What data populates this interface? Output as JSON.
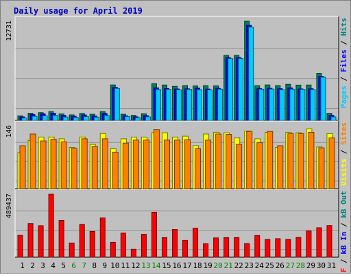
{
  "chart_data": [
    {
      "type": "bar",
      "title": "Daily usage for April 2019",
      "ylabel_parts": [
        {
          "text": "Pages",
          "color": "#00ccff"
        },
        {
          "text": " / ",
          "color": "#000000"
        },
        {
          "text": "Files",
          "color": "#0000ff"
        },
        {
          "text": " / ",
          "color": "#000000"
        },
        {
          "text": "Hits",
          "color": "#008080"
        }
      ],
      "y_max_label": "12731",
      "ylim": [
        0,
        12731
      ],
      "grid": true,
      "categories": [
        "1",
        "2",
        "3",
        "4",
        "5",
        "6",
        "7",
        "8",
        "9",
        "10",
        "11",
        "12",
        "13",
        "14",
        "15",
        "16",
        "17",
        "18",
        "19",
        "20",
        "21",
        "22",
        "23",
        "24",
        "25",
        "26",
        "27",
        "28",
        "29",
        "30",
        "31"
      ],
      "series": [
        {
          "name": "Hits",
          "color": "#00805c",
          "values": [
            580,
            910,
            990,
            1130,
            830,
            700,
            890,
            780,
            1130,
            4550,
            790,
            640,
            850,
            4710,
            4540,
            4370,
            4460,
            4420,
            4450,
            4430,
            8340,
            8340,
            12731,
            4450,
            4550,
            4460,
            4630,
            4530,
            4540,
            6010,
            900
          ]
        },
        {
          "name": "Files",
          "color": "#0000ff",
          "values": [
            440,
            740,
            830,
            900,
            630,
            520,
            690,
            570,
            880,
            4230,
            590,
            450,
            610,
            4170,
            4080,
            4030,
            4050,
            4140,
            4020,
            4110,
            8040,
            8040,
            12190,
            4070,
            4120,
            4070,
            4170,
            4040,
            4060,
            5650,
            640
          ]
        },
        {
          "name": "Pages",
          "color": "#00ccff",
          "values": [
            320,
            520,
            590,
            640,
            420,
            380,
            490,
            410,
            630,
            4100,
            480,
            350,
            450,
            3970,
            3980,
            3930,
            3970,
            3950,
            3920,
            4010,
            7920,
            7930,
            11970,
            4000,
            4020,
            3950,
            4000,
            3980,
            3960,
            5540,
            440
          ]
        }
      ]
    },
    {
      "type": "bar",
      "ylabel_parts": [
        {
          "text": "Visits",
          "color": "#ffff00"
        },
        {
          "text": " / ",
          "color": "#000000"
        },
        {
          "text": "Sites",
          "color": "#ff8000"
        }
      ],
      "y_max_label": "146",
      "ylim": [
        0,
        146
      ],
      "grid": true,
      "categories": [
        "1",
        "2",
        "3",
        "4",
        "5",
        "6",
        "7",
        "8",
        "9",
        "10",
        "11",
        "12",
        "13",
        "14",
        "15",
        "16",
        "17",
        "18",
        "19",
        "20",
        "21",
        "22",
        "23",
        "24",
        "25",
        "26",
        "27",
        "28",
        "29",
        "30",
        "31"
      ],
      "series": [
        {
          "name": "Visits",
          "color": "#ffff00",
          "values": [
            84,
            112,
            120,
            120,
            116,
            96,
            120,
            103,
            128,
            93,
            116,
            120,
            120,
            130,
            130,
            120,
            122,
            100,
            127,
            131,
            130,
            118,
            134,
            116,
            131,
            96,
            131,
            130,
            139,
            97,
            128
          ]
        },
        {
          "name": "Sites",
          "color": "#ff8000",
          "values": [
            100,
            127,
            111,
            115,
            109,
            94,
            116,
            98,
            116,
            85,
            106,
            113,
            113,
            137,
            113,
            113,
            114,
            93,
            113,
            127,
            126,
            103,
            133,
            107,
            133,
            100,
            128,
            128,
            131,
            95,
            118
          ]
        }
      ]
    },
    {
      "type": "bar",
      "ylabel_parts": [
        {
          "text": "kB F",
          "color": "#ff0000"
        },
        {
          "text": " / ",
          "color": "#000000"
        },
        {
          "text": "kB In",
          "color": "#0000ff"
        },
        {
          "text": " / ",
          "color": "#000000"
        },
        {
          "text": "kB Out",
          "color": "#008080"
        }
      ],
      "y_max_label": "489437",
      "ylim": [
        0,
        489437
      ],
      "grid": true,
      "categories": [
        "1",
        "2",
        "3",
        "4",
        "5",
        "6",
        "7",
        "8",
        "9",
        "10",
        "11",
        "12",
        "13",
        "14",
        "15",
        "16",
        "17",
        "18",
        "19",
        "20",
        "21",
        "22",
        "23",
        "24",
        "25",
        "26",
        "27",
        "28",
        "29",
        "30",
        "31"
      ],
      "series": [
        {
          "name": "kB F",
          "color": "#ff0000",
          "values": [
            170000,
            262000,
            245000,
            489437,
            285000,
            110000,
            254000,
            200000,
            305000,
            115000,
            187000,
            62000,
            178000,
            349000,
            152000,
            215000,
            131000,
            225000,
            105000,
            150000,
            152000,
            152000,
            106000,
            168000,
            138000,
            144000,
            138000,
            153000,
            204000,
            229000,
            246000
          ]
        }
      ]
    }
  ],
  "x_label_colors": [
    "#000000",
    "#000000",
    "#000000",
    "#000000",
    "#000000",
    "#008000",
    "#008000",
    "#000000",
    "#000000",
    "#000000",
    "#000000",
    "#000000",
    "#008000",
    "#008000",
    "#000000",
    "#000000",
    "#000000",
    "#000000",
    "#000000",
    "#008000",
    "#008000",
    "#000000",
    "#000000",
    "#000000",
    "#000000",
    "#000000",
    "#008000",
    "#008000",
    "#000000",
    "#000000",
    "#000000"
  ]
}
